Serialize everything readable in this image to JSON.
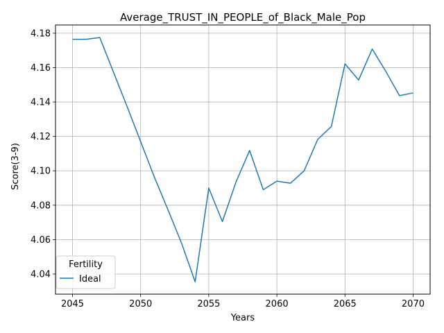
{
  "chart_data": {
    "type": "line",
    "title": "Average_TRUST_IN_PEOPLE_of_Black_Male_Pop",
    "xlabel": "Years",
    "ylabel": "Score(3-9)",
    "xlim": [
      2043.75,
      2071.25
    ],
    "ylim": [
      4.0283,
      4.1848
    ],
    "xticks": [
      2045,
      2050,
      2055,
      2060,
      2065,
      2070
    ],
    "yticks": [
      4.04,
      4.06,
      4.08,
      4.1,
      4.12,
      4.14,
      4.16,
      4.18
    ],
    "xtick_labels": [
      "2045",
      "2050",
      "2055",
      "2060",
      "2065",
      "2070"
    ],
    "ytick_labels": [
      "4.04",
      "4.06",
      "4.08",
      "4.10",
      "4.12",
      "4.14",
      "4.16",
      "4.18"
    ],
    "grid": true,
    "legend": {
      "title": "Fertility",
      "position": "lower-left"
    },
    "series": [
      {
        "name": "Ideal",
        "color": "#1f77b4",
        "x": [
          2045,
          2046,
          2047,
          2048,
          2049,
          2050,
          2051,
          2052,
          2053,
          2054,
          2055,
          2056,
          2057,
          2058,
          2059,
          2060,
          2061,
          2062,
          2063,
          2064,
          2065,
          2066,
          2067,
          2068,
          2069,
          2070
        ],
        "y": [
          4.1765,
          4.1765,
          4.1775,
          4.1575,
          4.1375,
          4.117,
          4.0965,
          4.0775,
          4.058,
          4.0355,
          4.09,
          4.0705,
          4.0935,
          4.1118,
          4.089,
          4.094,
          4.0928,
          4.1,
          4.1183,
          4.1258,
          4.1622,
          4.1528,
          4.1708,
          4.1578,
          4.1437,
          4.1453
        ]
      }
    ]
  }
}
